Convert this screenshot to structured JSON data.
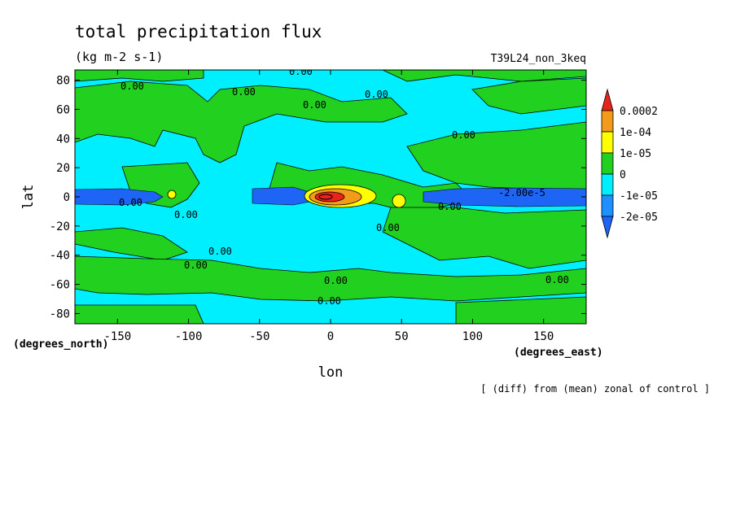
{
  "chart_data": {
    "type": "heatmap",
    "title": "total precipitation flux",
    "subtitle": "(kg m-2 s-1)",
    "experiment": "T39L24_non_3keq",
    "footnote": "[ (diff) from (mean) zonal of control ]",
    "xlabel": "lon",
    "ylabel": "lat",
    "x_units": "(degrees_east)",
    "y_units": "(degrees_north)",
    "xlim": [
      -180,
      180
    ],
    "ylim": [
      -87,
      87
    ],
    "x_ticks": [
      -150,
      -100,
      -50,
      0,
      50,
      100,
      150
    ],
    "x_tick_labels": [
      "-150",
      "-100",
      "-50",
      "0",
      "50",
      "100",
      "150"
    ],
    "y_ticks": [
      80,
      60,
      40,
      20,
      0,
      -20,
      -40,
      -60,
      -80
    ],
    "y_tick_labels": [
      "80",
      "60",
      "40",
      "20",
      "0",
      "-20",
      "-40",
      "-60",
      "-80"
    ],
    "colorbar": {
      "labels": [
        "0.0002",
        "1e-04",
        "1e-05",
        "0",
        "-1e-05",
        "-2e-05"
      ],
      "colors": [
        "#e8231b",
        "#f29a19",
        "#ffff00",
        "#22d11f",
        "#00efff",
        "#1e90ff",
        "#1e64f5"
      ]
    },
    "colors": {
      "negative_light": "#00efff",
      "positive_light": "#22d11f",
      "negative_strong": "#2a6df2",
      "negative_strong_edge": "#1e90ff",
      "positive_medium": "#ffff00",
      "positive_strong": "#f29a19",
      "positive_max": "#e8231b"
    },
    "contour_labels": [
      "0.00",
      "0.00",
      "0.00",
      "0.00",
      "0.00",
      "0.00",
      "0.00",
      "0.00",
      "0.00",
      "0.00",
      "0.00",
      "0.00",
      "0.00",
      "0.00",
      "0.00",
      "-2.00e-5"
    ],
    "regions": {
      "positive": [
        {
          "lon": [
            -170,
            -110
          ],
          "lat": [
            -10,
            40
          ]
        },
        {
          "lon": [
            50,
            180
          ],
          "lat": [
            -30,
            40
          ]
        },
        {
          "lon": [
            -180,
            180
          ],
          "lat": [
            -70,
            -45
          ]
        }
      ],
      "negative_equatorial_band": {
        "lon": [
          -180,
          180
        ],
        "lat": [
          -5,
          5
        ]
      },
      "maximum": {
        "lon": 5,
        "lat": 0
      }
    }
  }
}
